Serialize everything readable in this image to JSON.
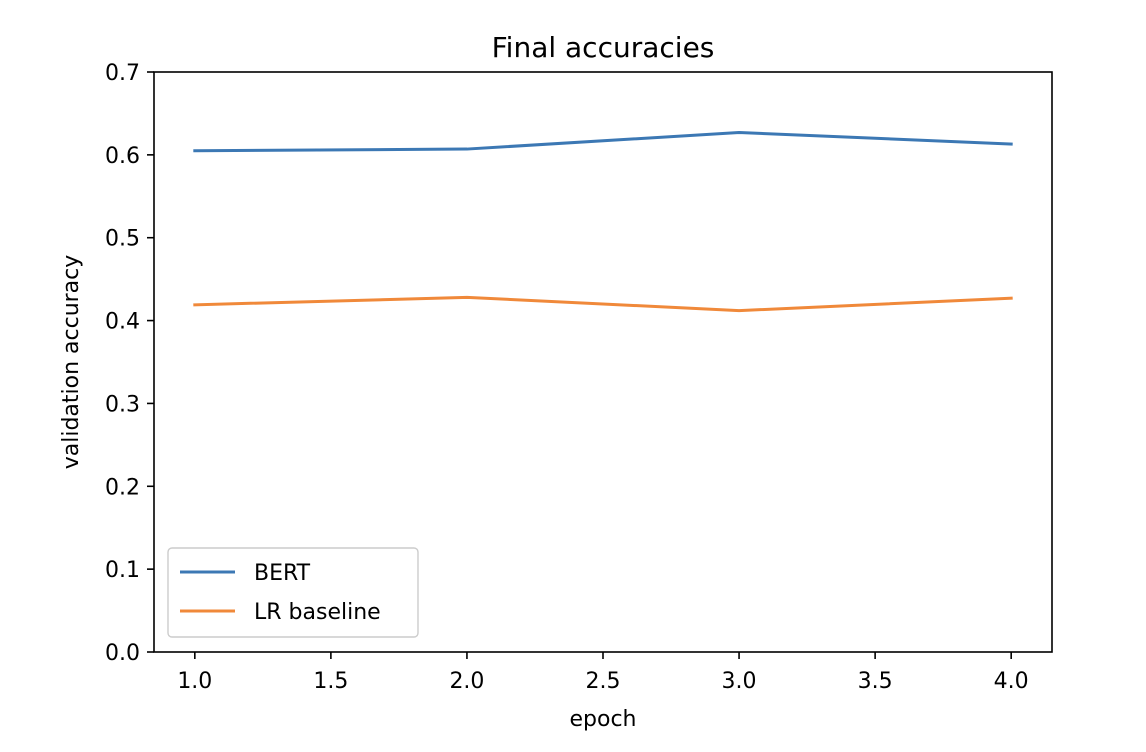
{
  "chart_data": {
    "type": "line",
    "title": "Final accuracies",
    "xlabel": "epoch",
    "ylabel": "validation accuracy",
    "x": [
      1.0,
      2.0,
      3.0,
      4.0
    ],
    "xlim": [
      0.85,
      4.15
    ],
    "ylim": [
      0.0,
      0.7
    ],
    "xticks": [
      "1.0",
      "1.5",
      "2.0",
      "2.5",
      "3.0",
      "3.5",
      "4.0"
    ],
    "xtick_values": [
      1.0,
      1.5,
      2.0,
      2.5,
      3.0,
      3.5,
      4.0
    ],
    "yticks": [
      "0.0",
      "0.1",
      "0.2",
      "0.3",
      "0.4",
      "0.5",
      "0.6",
      "0.7"
    ],
    "ytick_values": [
      0.0,
      0.1,
      0.2,
      0.3,
      0.4,
      0.5,
      0.6,
      0.7
    ],
    "grid": false,
    "legend_position": "lower-left",
    "series": [
      {
        "name": "BERT",
        "color": "#3c78b4",
        "values": [
          0.605,
          0.607,
          0.627,
          0.613
        ]
      },
      {
        "name": "LR baseline",
        "color": "#f0893a",
        "values": [
          0.419,
          0.428,
          0.412,
          0.427
        ]
      }
    ]
  }
}
